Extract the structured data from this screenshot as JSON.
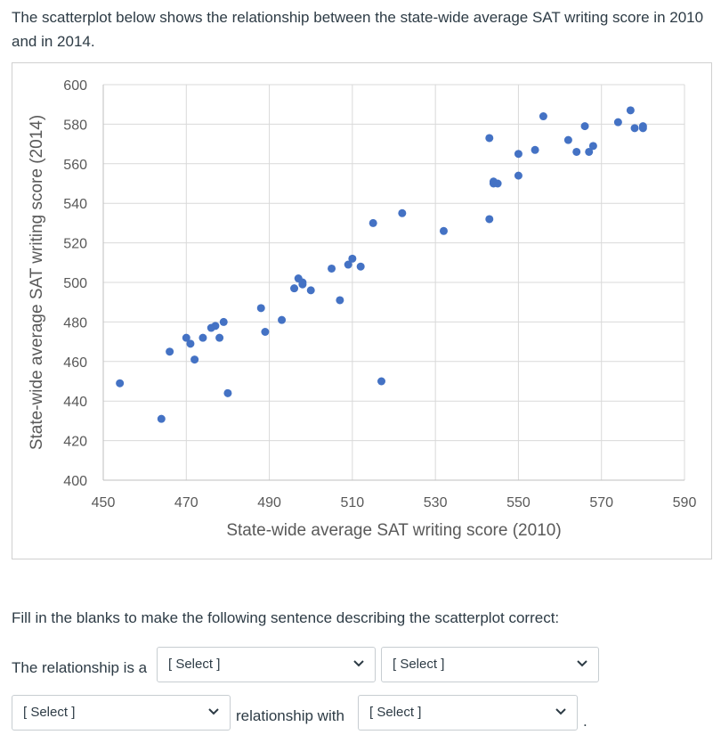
{
  "question": {
    "intro": "The scatterplot below shows the relationship between the state-wide average SAT writing score in 2010 and in 2014.",
    "instructions": "Fill in the blanks to make the following sentence describing the scatterplot correct:",
    "sentence_part1": "The relationship is a",
    "sentence_part2": "relationship with",
    "sentence_end": ".",
    "dropdown_1": "[ Select ]",
    "dropdown_2": "[ Select ]",
    "dropdown_3": "[ Select ]",
    "dropdown_4": "[ Select ]"
  },
  "colors": {
    "point": "#4472c4",
    "grid": "#d9d9d9",
    "axis_text": "#595959"
  },
  "chart_data": {
    "type": "scatter",
    "title": "",
    "xlabel": "State-wide average SAT writing score (2010)",
    "ylabel": "State-wide average SAT writing score (2014)",
    "xlim": [
      450,
      590
    ],
    "ylim": [
      400,
      600
    ],
    "xticks": [
      "450",
      "470",
      "490",
      "510",
      "530",
      "550",
      "570",
      "590"
    ],
    "yticks": [
      "400",
      "420",
      "440",
      "460",
      "480",
      "500",
      "520",
      "540",
      "560",
      "580",
      "600"
    ],
    "grid": true,
    "points": [
      [
        454,
        449
      ],
      [
        464,
        431
      ],
      [
        466,
        465
      ],
      [
        470,
        472
      ],
      [
        471,
        469
      ],
      [
        472,
        461
      ],
      [
        474,
        472
      ],
      [
        476,
        477
      ],
      [
        477,
        478
      ],
      [
        478,
        472
      ],
      [
        479,
        480
      ],
      [
        480,
        444
      ],
      [
        488,
        487
      ],
      [
        489,
        475
      ],
      [
        493,
        481
      ],
      [
        496,
        497
      ],
      [
        497,
        502
      ],
      [
        498,
        500
      ],
      [
        498,
        499
      ],
      [
        500,
        496
      ],
      [
        505,
        507
      ],
      [
        507,
        491
      ],
      [
        509,
        509
      ],
      [
        510,
        512
      ],
      [
        512,
        508
      ],
      [
        515,
        530
      ],
      [
        517,
        450
      ],
      [
        522,
        535
      ],
      [
        532,
        526
      ],
      [
        543,
        573
      ],
      [
        543,
        532
      ],
      [
        544,
        551
      ],
      [
        545,
        550
      ],
      [
        544,
        550
      ],
      [
        550,
        565
      ],
      [
        550,
        554
      ],
      [
        554,
        567
      ],
      [
        556,
        584
      ],
      [
        562,
        572
      ],
      [
        564,
        566
      ],
      [
        566,
        579
      ],
      [
        567,
        566
      ],
      [
        568,
        569
      ],
      [
        574,
        581
      ],
      [
        577,
        587
      ],
      [
        578,
        578
      ],
      [
        580,
        578
      ],
      [
        580,
        579
      ]
    ]
  }
}
